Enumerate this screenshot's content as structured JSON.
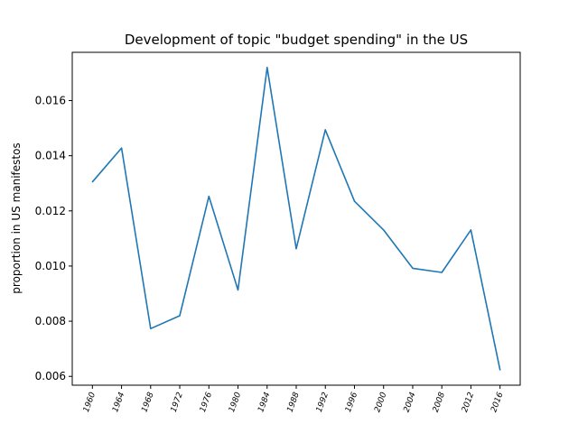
{
  "chart_data": {
    "type": "line",
    "title": "Development of topic \"budget spending\" in the US",
    "xlabel": "",
    "ylabel": "proportion in US manifestos",
    "categories": [
      "1960",
      "1964",
      "1968",
      "1972",
      "1976",
      "1980",
      "1984",
      "1988",
      "1992",
      "1996",
      "2000",
      "2004",
      "2008",
      "2012",
      "2016"
    ],
    "series": [
      {
        "values": [
          0.01305,
          0.01428,
          0.00773,
          0.0082,
          0.01253,
          0.00913,
          0.0172,
          0.01063,
          0.01494,
          0.01235,
          0.01131,
          0.00992,
          0.00977,
          0.01131,
          0.00623
        ]
      }
    ],
    "yticks": [
      "0.006",
      "0.008",
      "0.010",
      "0.012",
      "0.014",
      "0.016"
    ],
    "ylim": [
      0.00568,
      0.01775
    ],
    "grid": false,
    "legend": "none",
    "colors": {
      "line": "#1f77b4",
      "axis": "#000000"
    }
  }
}
